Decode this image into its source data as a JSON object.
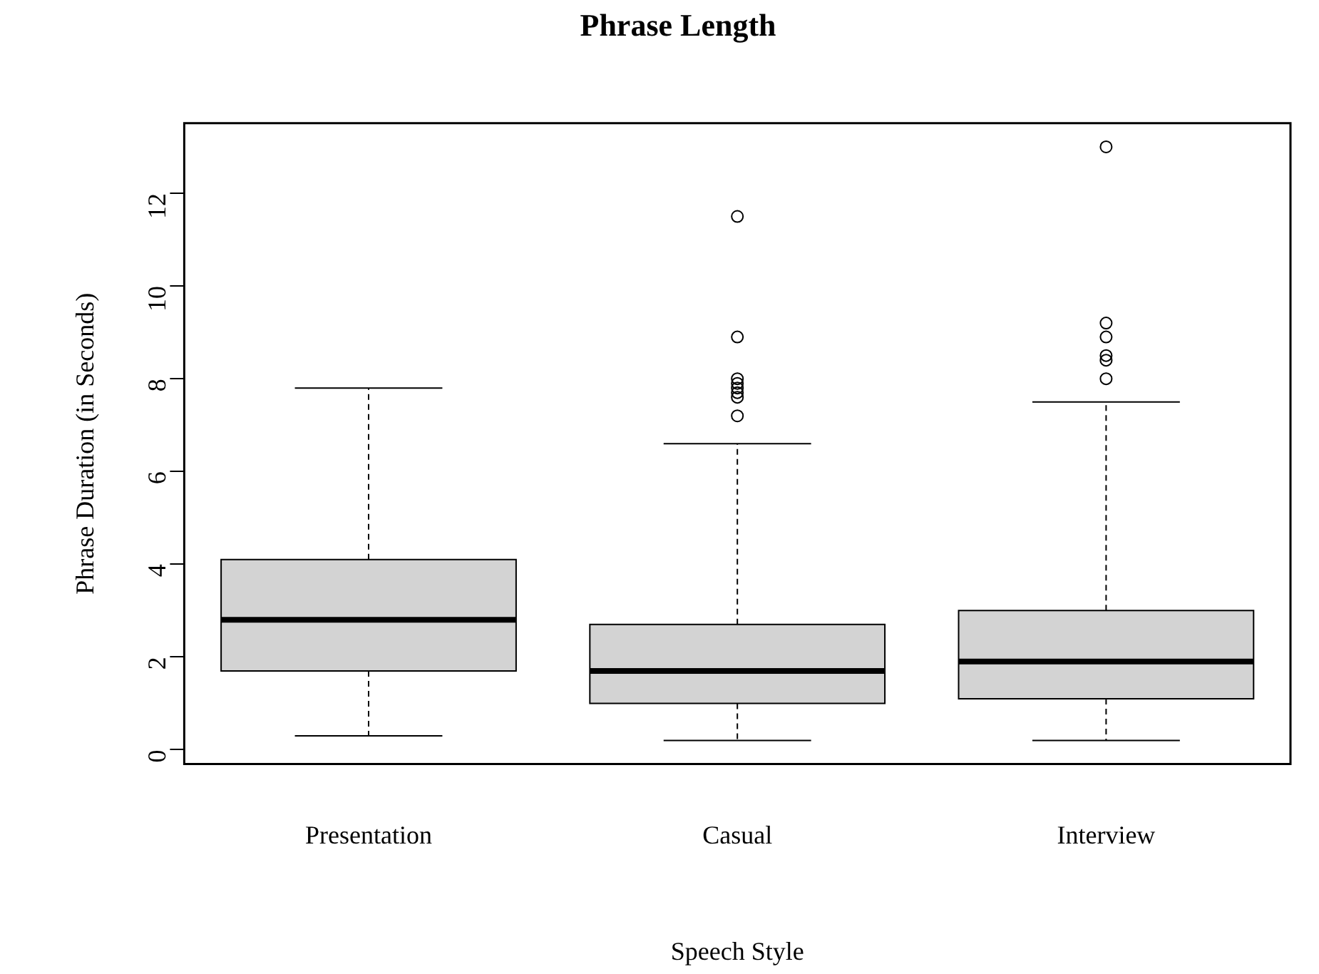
{
  "chart_data": {
    "type": "box",
    "title": "Phrase Length",
    "xlabel": "Speech Style",
    "ylabel": "Phrase Duration (in Seconds)",
    "categories": [
      "Presentation",
      "Casual",
      "Interview"
    ],
    "boxes": [
      {
        "low": 0.3,
        "q1": 1.7,
        "median": 2.8,
        "q3": 4.1,
        "high": 7.8
      },
      {
        "low": 0.2,
        "q1": 1.0,
        "median": 1.7,
        "q3": 2.7,
        "high": 6.6,
        "outliers": [
          7.2,
          7.6,
          7.7,
          7.8,
          7.9,
          8.0,
          8.9,
          11.5
        ]
      },
      {
        "low": 0.2,
        "q1": 1.1,
        "median": 1.9,
        "q3": 3.0,
        "high": 7.5,
        "outliers": [
          8.0,
          8.4,
          8.5,
          8.9,
          9.2,
          13.0
        ]
      }
    ],
    "color": "#d3d3d3",
    "ylim": [
      -0.31,
      13.51
    ],
    "yticks": [
      0,
      2,
      4,
      6,
      8,
      10,
      12
    ],
    "grid": false,
    "legend": false,
    "marker": "circle"
  }
}
